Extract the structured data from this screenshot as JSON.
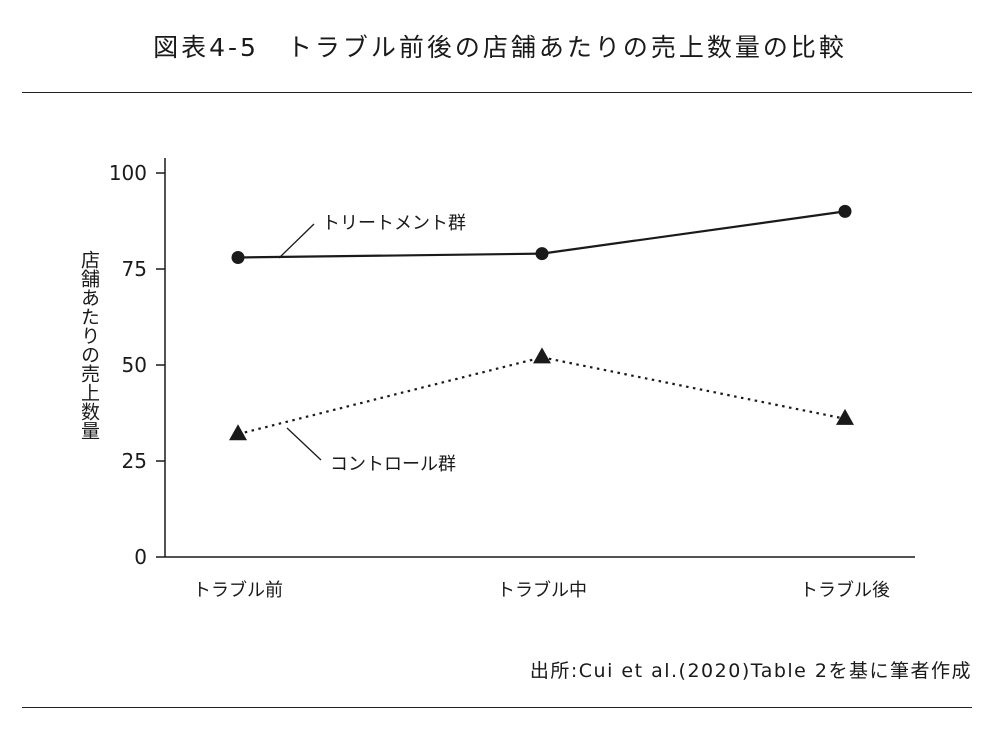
{
  "title": "図表4-5　トラブル前後の店舗あたりの売上数量の比較",
  "source": "出所:Cui et al.(2020)Table 2を基に筆者作成",
  "colors": {
    "ink": "#1a1a1a"
  },
  "chart_data": {
    "type": "line",
    "ylabel": "店舗あたりの売上数量",
    "xlabel": "",
    "categories": [
      "トラブル前",
      "トラブル中",
      "トラブル後"
    ],
    "ylim": [
      0,
      100
    ],
    "yticks": [
      "0",
      "25",
      "50",
      "75",
      "100"
    ],
    "series": [
      {
        "name": "トリートメント群",
        "values": [
          78,
          79,
          90
        ],
        "marker": "circle",
        "line_style": "solid"
      },
      {
        "name": "コントロール群",
        "values": [
          32,
          52,
          36
        ],
        "marker": "triangle",
        "line_style": "dotted"
      }
    ],
    "grid": false,
    "legend": "callout labels"
  }
}
